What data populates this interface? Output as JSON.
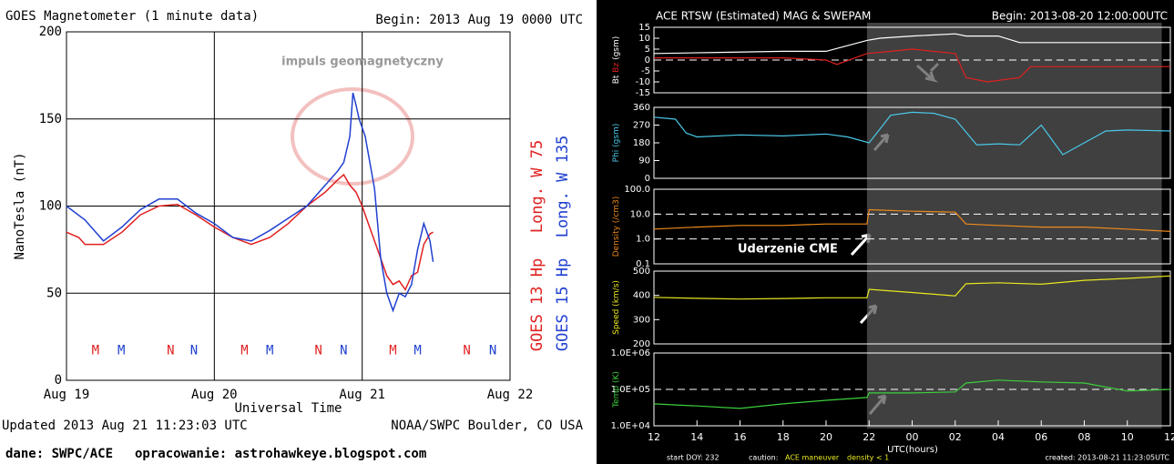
{
  "chart_data": [
    {
      "type": "line",
      "title": "GOES Magnetometer (1 minute data)",
      "begin": "Begin:  2013 Aug 19 0000 UTC",
      "ylabel": "NanoTesla (nT)",
      "xlabel": "Universal Time",
      "xlim": [
        0,
        72
      ],
      "xticks": [
        {
          "value": 0,
          "label": "Aug 19"
        },
        {
          "value": 24,
          "label": "Aug 20"
        },
        {
          "value": 48,
          "label": "Aug 21"
        },
        {
          "value": 72,
          "label": "Aug 22"
        }
      ],
      "ylim": [
        0,
        200
      ],
      "yticks": [
        0,
        50,
        100,
        150,
        200
      ],
      "grid": true,
      "series": [
        {
          "name": "GOES 13 Hp",
          "longitude": "Long. W 75",
          "color": "#e02020",
          "x": [
            0,
            2,
            3,
            6,
            9,
            12,
            15,
            18,
            21,
            24,
            27,
            30,
            33,
            36,
            39,
            42,
            44,
            45,
            46,
            47,
            48,
            49,
            50,
            51,
            52,
            53,
            54,
            55,
            56,
            57,
            58,
            59,
            59.5
          ],
          "values": [
            85,
            82,
            78,
            78,
            85,
            95,
            100,
            101,
            95,
            88,
            82,
            78,
            82,
            90,
            100,
            108,
            115,
            118,
            112,
            108,
            100,
            90,
            80,
            70,
            60,
            55,
            57,
            52,
            60,
            62,
            78,
            84,
            85
          ]
        },
        {
          "name": "GOES 15 Hp",
          "longitude": "Long. W 135",
          "color": "#2040d0",
          "x": [
            0,
            3,
            6,
            9,
            12,
            15,
            18,
            21,
            24,
            27,
            30,
            33,
            36,
            39,
            42,
            44,
            45,
            46,
            46.5,
            47,
            47.5,
            48.5,
            50,
            51,
            52,
            53,
            54,
            55,
            56,
            57,
            58,
            59,
            59.5
          ],
          "values": [
            100,
            92,
            80,
            88,
            98,
            104,
            104,
            96,
            90,
            82,
            80,
            86,
            93,
            100,
            112,
            120,
            125,
            140,
            165,
            158,
            150,
            140,
            110,
            70,
            50,
            40,
            50,
            48,
            55,
            75,
            90,
            80,
            68
          ]
        }
      ],
      "annotations": [
        {
          "text": "M",
          "x": 4.7,
          "y": 17,
          "color": "#e02020"
        },
        {
          "text": "M",
          "x": 8.9,
          "y": 17,
          "color": "#2040d0"
        },
        {
          "text": "N",
          "x": 16.9,
          "y": 17,
          "color": "#e02020"
        },
        {
          "text": "N",
          "x": 20.7,
          "y": 17,
          "color": "#2040d0"
        },
        {
          "text": "M",
          "x": 28.9,
          "y": 17,
          "color": "#e02020"
        },
        {
          "text": "M",
          "x": 33,
          "y": 17,
          "color": "#2040d0"
        },
        {
          "text": "N",
          "x": 40.9,
          "y": 17,
          "color": "#e02020"
        },
        {
          "text": "N",
          "x": 45,
          "y": 17,
          "color": "#2040d0"
        },
        {
          "text": "M",
          "x": 53,
          "y": 17,
          "color": "#e02020"
        },
        {
          "text": "M",
          "x": 57,
          "y": 17,
          "color": "#2040d0"
        },
        {
          "text": "N",
          "x": 65,
          "y": 17,
          "color": "#e02020"
        },
        {
          "text": "N",
          "x": 69.2,
          "y": 17,
          "color": "#2040d0"
        }
      ],
      "note": "impuls geomagnetyczny",
      "updated": "Updated 2013 Aug 21 11:23:03 UTC",
      "source": "NOAA/SWPC Boulder, CO USA"
    },
    {
      "type": "panels",
      "title": "ACE RTSW (Estimated) MAG & SWEPAM",
      "begin": "Begin: 2013-08-20 12:00:00UTC",
      "xlabel": "UTC(hours)",
      "xlim": [
        0,
        24
      ],
      "xticks": [
        {
          "value": 0,
          "label": "12"
        },
        {
          "value": 2,
          "label": "14"
        },
        {
          "value": 4,
          "label": "16"
        },
        {
          "value": 6,
          "label": "18"
        },
        {
          "value": 8,
          "label": "20"
        },
        {
          "value": 10,
          "label": "22"
        },
        {
          "value": 12,
          "label": "00"
        },
        {
          "value": 14,
          "label": "02"
        },
        {
          "value": 16,
          "label": "04"
        },
        {
          "value": 18,
          "label": "06"
        },
        {
          "value": 20,
          "label": "08"
        },
        {
          "value": 22,
          "label": "10"
        },
        {
          "value": 24,
          "label": "12"
        }
      ],
      "shade": [
        9.9,
        23.6
      ],
      "annotation": "Uderzenie CME",
      "footer": {
        "doy": "start DOY: 232",
        "caution": "caution:",
        "maneuver": "ACE maneuver",
        "density": "density < 1",
        "created": "created: 2013-08-21 11:23:05UTC"
      },
      "panels": [
        {
          "labels": [
            {
              "text": "Bt",
              "color": "#ffffff"
            },
            {
              "text": "Bz",
              "color": "#e02020"
            },
            {
              "text": "(gsm)",
              "color": "#ffffff"
            }
          ],
          "ylim": [
            -15,
            15
          ],
          "yticks": [
            -15,
            -10,
            -5,
            0,
            5,
            10,
            15
          ],
          "ref_lines": [
            0
          ],
          "series": [
            {
              "name": "Bt",
              "color": "#ffffff",
              "x": [
                0,
                3,
                6,
                8,
                9.9,
                10.5,
                12,
                14,
                14.5,
                16,
                17,
                18,
                20,
                22,
                24
              ],
              "values": [
                3,
                3.5,
                4,
                4,
                9,
                10,
                11,
                12,
                11,
                11,
                8,
                8,
                8,
                8,
                8
              ]
            },
            {
              "name": "Bz",
              "color": "#e02020",
              "x": [
                0,
                3,
                6,
                8,
                8.5,
                9.9,
                11,
                12,
                14,
                14.5,
                15.5,
                17,
                17.5,
                20,
                22,
                24
              ],
              "values": [
                1,
                1,
                1,
                0,
                -2,
                3,
                4,
                5,
                3,
                -8,
                -10,
                -8,
                -3,
                -3,
                -3,
                -3
              ]
            }
          ]
        },
        {
          "labels": [
            {
              "text": "Phi (gsm)",
              "color": "#4ac8e8"
            }
          ],
          "ylim": [
            0,
            360
          ],
          "yticks": [
            0,
            90,
            180,
            270,
            360
          ],
          "ref_lines": [],
          "series": [
            {
              "name": "Phi",
              "color": "#4ac8e8",
              "x": [
                0,
                1,
                1.5,
                2,
                4,
                6,
                8,
                9,
                10,
                11,
                12,
                13,
                14,
                15,
                16,
                17,
                18,
                19,
                20,
                21,
                22,
                24
              ],
              "values": [
                310,
                300,
                230,
                210,
                220,
                215,
                225,
                210,
                180,
                320,
                335,
                330,
                300,
                170,
                175,
                170,
                270,
                120,
                180,
                240,
                245,
                240
              ]
            }
          ]
        },
        {
          "labels": [
            {
              "text": "Density (/cm3)",
              "color": "#f08a1c"
            }
          ],
          "log": true,
          "ylim": [
            0.1,
            100
          ],
          "yticks": [
            {
              "value": 0.1,
              "label": "0.1"
            },
            {
              "value": 1,
              "label": "1.0"
            },
            {
              "value": 10,
              "label": "10.0"
            },
            {
              "value": 100,
              "label": "100.0"
            }
          ],
          "ref_lines": [
            10,
            1
          ],
          "series": [
            {
              "name": "Density",
              "color": "#f08a1c",
              "x": [
                0,
                2,
                4,
                6,
                8,
                9.9,
                10,
                12,
                14,
                14.5,
                16,
                18,
                20,
                22,
                24
              ],
              "values": [
                2.5,
                3,
                3.5,
                3.5,
                4,
                4,
                15,
                13,
                12,
                4,
                3.5,
                3,
                3,
                2.5,
                2
              ]
            }
          ]
        },
        {
          "labels": [
            {
              "text": "Speed (km/s)",
              "color": "#e8e820"
            }
          ],
          "ylim": [
            200,
            500
          ],
          "yticks": [
            200,
            300,
            400,
            500
          ],
          "ref_lines": [],
          "series": [
            {
              "name": "Speed",
              "color": "#e8e820",
              "x": [
                0,
                2,
                4,
                6,
                8,
                9.9,
                10,
                12,
                14,
                14.5,
                16,
                18,
                20,
                22,
                24
              ],
              "values": [
                392,
                388,
                385,
                387,
                390,
                390,
                425,
                412,
                398,
                448,
                452,
                446,
                462,
                470,
                480
              ]
            }
          ]
        },
        {
          "labels": [
            {
              "text": "Temp (K)",
              "color": "#3cd03c"
            }
          ],
          "log": true,
          "ylim": [
            10000,
            1000000
          ],
          "yticks": [
            {
              "value": 10000,
              "label": "1.0E+04"
            },
            {
              "value": 100000,
              "label": "1.0E+05"
            },
            {
              "value": 1000000,
              "label": "1.0E+06"
            }
          ],
          "ref_lines": [
            100000
          ],
          "series": [
            {
              "name": "Temp",
              "color": "#3cd03c",
              "x": [
                0,
                2,
                4,
                6,
                8,
                9.9,
                10,
                12,
                14,
                14.5,
                16,
                18,
                20,
                22,
                24
              ],
              "values": [
                40000,
                35000,
                30000,
                40000,
                50000,
                60000,
                80000,
                80000,
                85000,
                150000,
                180000,
                160000,
                150000,
                90000,
                100000
              ]
            }
          ]
        }
      ]
    }
  ],
  "credits": {
    "data": "dane: SWPC/ACE",
    "author": "opracowanie: astrohawkeye.blogspot.com"
  }
}
